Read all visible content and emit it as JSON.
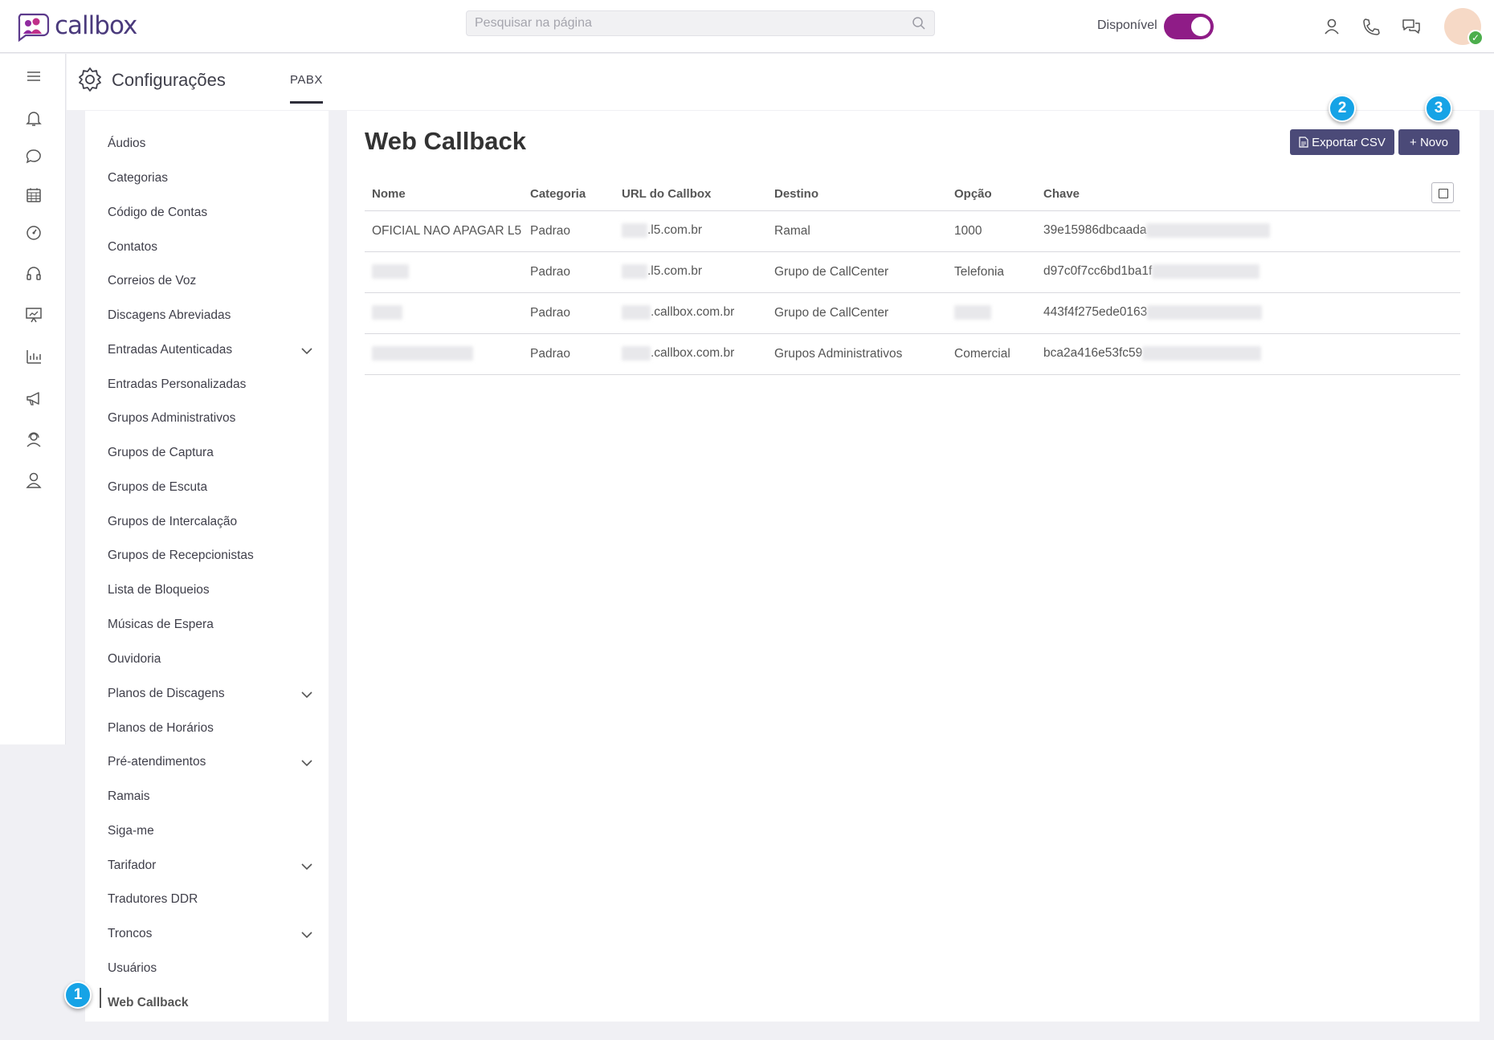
{
  "app": {
    "logo_text": "callbox"
  },
  "search": {
    "placeholder": "Pesquisar na página"
  },
  "status": {
    "label": "Disponível",
    "toggle_on": true,
    "toggle_color": "#8f1c87"
  },
  "header": {
    "title": "Configurações",
    "tab": "PABX"
  },
  "menu": {
    "items": [
      {
        "label": "Áudios",
        "expandable": false
      },
      {
        "label": "Categorias",
        "expandable": false
      },
      {
        "label": "Código de Contas",
        "expandable": false
      },
      {
        "label": "Contatos",
        "expandable": false
      },
      {
        "label": "Correios de Voz",
        "expandable": false
      },
      {
        "label": "Discagens Abreviadas",
        "expandable": false
      },
      {
        "label": "Entradas Autenticadas",
        "expandable": true
      },
      {
        "label": "Entradas Personalizadas",
        "expandable": false
      },
      {
        "label": "Grupos Administrativos",
        "expandable": false
      },
      {
        "label": "Grupos de Captura",
        "expandable": false
      },
      {
        "label": "Grupos de Escuta",
        "expandable": false
      },
      {
        "label": "Grupos de Intercalação",
        "expandable": false
      },
      {
        "label": "Grupos de Recepcionistas",
        "expandable": false
      },
      {
        "label": "Lista de Bloqueios",
        "expandable": false
      },
      {
        "label": "Músicas de Espera",
        "expandable": false
      },
      {
        "label": "Ouvidoria",
        "expandable": false
      },
      {
        "label": "Planos de Discagens",
        "expandable": true
      },
      {
        "label": "Planos de Horários",
        "expandable": false
      },
      {
        "label": "Pré-atendimentos",
        "expandable": true
      },
      {
        "label": "Ramais",
        "expandable": false
      },
      {
        "label": "Siga-me",
        "expandable": false
      },
      {
        "label": "Tarifador",
        "expandable": true
      },
      {
        "label": "Tradutores DDR",
        "expandable": false
      },
      {
        "label": "Troncos",
        "expandable": true
      },
      {
        "label": "Usuários",
        "expandable": false
      },
      {
        "label": "Web Callback",
        "expandable": false,
        "active": true
      }
    ]
  },
  "main": {
    "title": "Web Callback",
    "export_label": "Exportar CSV",
    "new_label": "+ Novo",
    "button_color": "#4b4a78",
    "columns": [
      "Nome",
      "Categoria",
      "URL do Callbox",
      "Destino",
      "Opção",
      "Chave"
    ],
    "rows": [
      {
        "nome": "OFICIAL NAO APAGAR L5",
        "categoria": "Padrao",
        "url": ".l5.com.br",
        "destino": "Ramal",
        "opcao": "1000",
        "chave": "39e15986dbcaada"
      },
      {
        "nome": "",
        "categoria": "Padrao",
        "url": ".l5.com.br",
        "destino": "Grupo de CallCenter",
        "opcao": "Telefonia",
        "chave": "d97c0f7cc6bd1ba1f"
      },
      {
        "nome": "",
        "categoria": "Padrao",
        "url": ".callbox.com.br",
        "destino": "Grupo de CallCenter",
        "opcao": "",
        "chave": "443f4f275ede0163"
      },
      {
        "nome": "",
        "categoria": "Padrao",
        "url": ".callbox.com.br",
        "destino": "Grupos Administrativos",
        "opcao": "Comercial",
        "chave": "bca2a416e53fc59"
      }
    ]
  },
  "callouts": [
    "1",
    "2",
    "3"
  ],
  "callout_color": "#16a3e6"
}
